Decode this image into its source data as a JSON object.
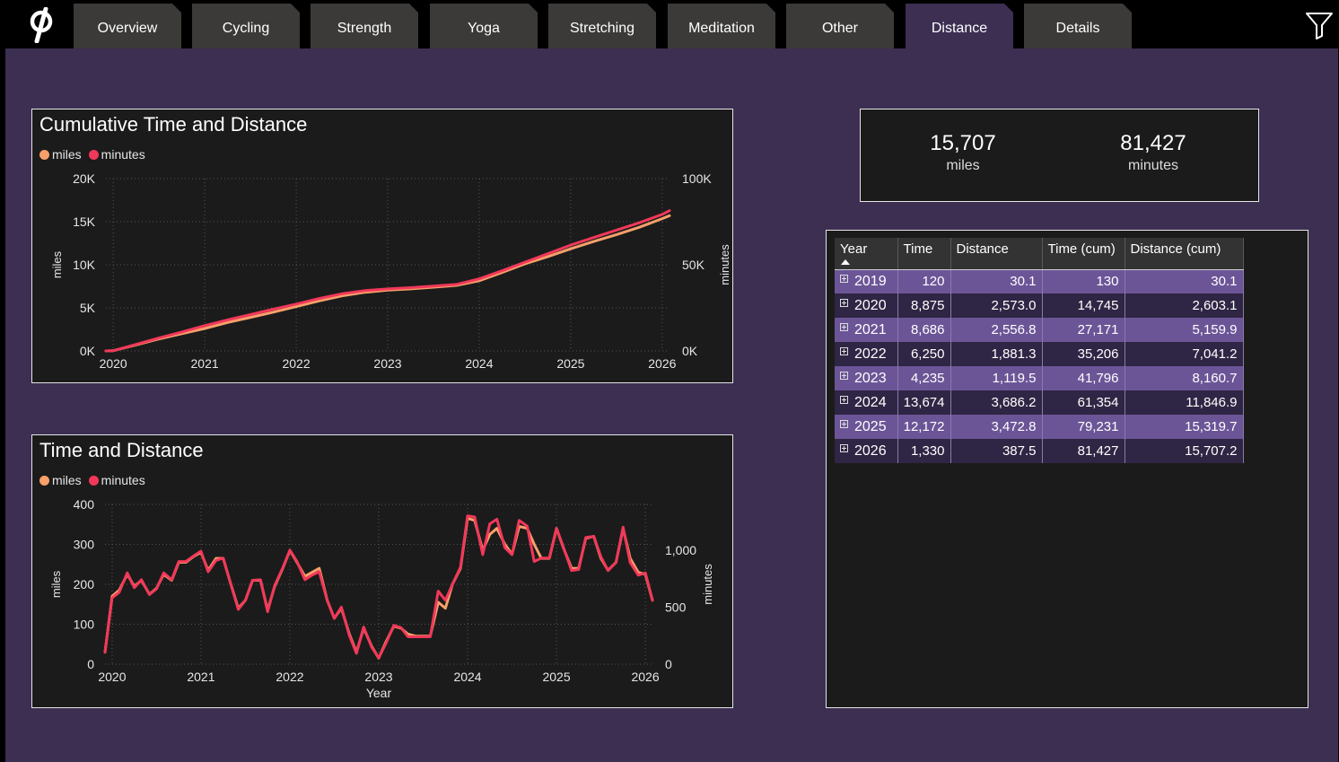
{
  "nav": {
    "tabs": [
      {
        "label": "Overview",
        "active": false
      },
      {
        "label": "Cycling",
        "active": false
      },
      {
        "label": "Strength",
        "active": false
      },
      {
        "label": "Yoga",
        "active": false
      },
      {
        "label": "Stretching",
        "active": false
      },
      {
        "label": "Meditation",
        "active": false
      },
      {
        "label": "Other",
        "active": false
      },
      {
        "label": "Distance",
        "active": true
      },
      {
        "label": "Details",
        "active": false
      }
    ],
    "logo_icon": "peloton-logo-icon",
    "filter_icon": "funnel-icon"
  },
  "colors": {
    "miles": "#f7a06a",
    "minutes": "#f2385a",
    "canvas": "#3c2f52",
    "panel": "#1b1b1b"
  },
  "kpi": {
    "miles_value": "15,707",
    "miles_label": "miles",
    "minutes_value": "81,427",
    "minutes_label": "minutes"
  },
  "table": {
    "headers": [
      "Year",
      "Time",
      "Distance",
      "Time (cum)",
      "Distance (cum)"
    ],
    "sort": "Year ascending",
    "rows": [
      [
        "2019",
        "120",
        "30.1",
        "130",
        "30.1"
      ],
      [
        "2020",
        "8,875",
        "2,573.0",
        "14,745",
        "2,603.1"
      ],
      [
        "2021",
        "8,686",
        "2,556.8",
        "27,171",
        "5,159.9"
      ],
      [
        "2022",
        "6,250",
        "1,881.3",
        "35,206",
        "7,041.2"
      ],
      [
        "2023",
        "4,235",
        "1,119.5",
        "41,796",
        "8,160.7"
      ],
      [
        "2024",
        "13,674",
        "3,686.2",
        "61,354",
        "11,846.9"
      ],
      [
        "2025",
        "12,172",
        "3,472.8",
        "79,231",
        "15,319.7"
      ],
      [
        "2026",
        "1,330",
        "387.5",
        "81,427",
        "15,707.2"
      ]
    ]
  },
  "chart_data": [
    {
      "type": "line",
      "title": "Cumulative Time and Distance",
      "legend": [
        "miles",
        "minutes"
      ],
      "legend_position": "top-left",
      "grid": true,
      "xlabel": "",
      "ylabel": "miles",
      "y2label": "minutes",
      "x_ticks": [
        "2020",
        "2021",
        "2022",
        "2023",
        "2024",
        "2025",
        "2026"
      ],
      "y_ticks": [
        "0K",
        "5K",
        "10K",
        "15K",
        "20K"
      ],
      "y2_ticks": [
        "0K",
        "50K",
        "100K"
      ],
      "xlim": [
        2019.92,
        2026.08
      ],
      "ylim": [
        0,
        20000
      ],
      "y2lim": [
        0,
        100000
      ],
      "series": [
        {
          "name": "miles",
          "axis": "left",
          "x": [
            2019.92,
            2020.0,
            2020.25,
            2020.5,
            2020.75,
            2021.0,
            2021.25,
            2021.5,
            2021.75,
            2022.0,
            2022.25,
            2022.5,
            2022.75,
            2023.0,
            2023.25,
            2023.5,
            2023.75,
            2024.0,
            2024.25,
            2024.5,
            2024.75,
            2025.0,
            2025.25,
            2025.5,
            2025.75,
            2026.0,
            2026.08
          ],
          "y": [
            0,
            30,
            700,
            1400,
            2000,
            2600,
            3300,
            3900,
            4500,
            5150,
            5800,
            6400,
            6800,
            7050,
            7200,
            7400,
            7600,
            8150,
            9100,
            10100,
            10950,
            11850,
            12700,
            13500,
            14350,
            15350,
            15700
          ]
        },
        {
          "name": "minutes",
          "axis": "right",
          "x": [
            2019.92,
            2020.0,
            2020.25,
            2020.5,
            2020.75,
            2021.0,
            2021.25,
            2021.5,
            2021.75,
            2022.0,
            2022.25,
            2022.5,
            2022.75,
            2023.0,
            2023.25,
            2023.5,
            2023.75,
            2024.0,
            2024.25,
            2024.5,
            2024.75,
            2025.0,
            2025.25,
            2025.5,
            2025.75,
            2026.0,
            2026.08
          ],
          "y": [
            0,
            130,
            3800,
            7500,
            11000,
            14700,
            18000,
            21100,
            24200,
            27200,
            30400,
            33200,
            35000,
            36000,
            36700,
            37600,
            38600,
            41800,
            46500,
            51500,
            56400,
            61400,
            65800,
            70100,
            74400,
            79200,
            81400
          ]
        }
      ]
    },
    {
      "type": "line",
      "title": "Time and Distance",
      "legend": [
        "miles",
        "minutes"
      ],
      "legend_position": "top-left",
      "grid": true,
      "xlabel": "Year",
      "ylabel": "miles",
      "y2label": "minutes",
      "x_ticks": [
        "2020",
        "2021",
        "2022",
        "2023",
        "2024",
        "2025",
        "2026"
      ],
      "y_ticks": [
        "0",
        "100",
        "200",
        "300",
        "400"
      ],
      "y2_ticks": [
        "0",
        "500",
        "1,000"
      ],
      "xlim": [
        2019.92,
        2026.08
      ],
      "ylim": [
        0,
        400
      ],
      "y2lim": [
        0,
        1400
      ],
      "series": [
        {
          "name": "miles",
          "axis": "left",
          "x": [
            2019.92,
            2020.0,
            2020.08,
            2020.17,
            2020.25,
            2020.33,
            2020.42,
            2020.5,
            2020.58,
            2020.67,
            2020.75,
            2020.83,
            2020.92,
            2021.0,
            2021.08,
            2021.17,
            2021.25,
            2021.33,
            2021.42,
            2021.5,
            2021.58,
            2021.67,
            2021.75,
            2021.83,
            2021.92,
            2022.0,
            2022.08,
            2022.17,
            2022.25,
            2022.33,
            2022.42,
            2022.5,
            2022.58,
            2022.67,
            2022.75,
            2022.83,
            2022.92,
            2023.0,
            2023.08,
            2023.17,
            2023.25,
            2023.33,
            2023.42,
            2023.5,
            2023.58,
            2023.67,
            2023.75,
            2023.83,
            2023.92,
            2024.0,
            2024.08,
            2024.17,
            2024.25,
            2024.33,
            2024.42,
            2024.5,
            2024.58,
            2024.67,
            2024.75,
            2024.83,
            2024.92,
            2025.0,
            2025.08,
            2025.17,
            2025.25,
            2025.33,
            2025.42,
            2025.5,
            2025.58,
            2025.67,
            2025.75,
            2025.83,
            2025.92,
            2026.0,
            2026.08
          ],
          "y": [
            30,
            170,
            185,
            225,
            195,
            210,
            175,
            190,
            225,
            210,
            255,
            255,
            270,
            280,
            235,
            265,
            265,
            205,
            140,
            160,
            210,
            210,
            135,
            195,
            240,
            285,
            255,
            220,
            230,
            240,
            160,
            115,
            140,
            75,
            30,
            90,
            45,
            15,
            55,
            95,
            90,
            75,
            70,
            70,
            70,
            155,
            140,
            200,
            240,
            365,
            360,
            285,
            325,
            340,
            300,
            275,
            345,
            340,
            300,
            265,
            265,
            340,
            290,
            240,
            240,
            315,
            320,
            265,
            235,
            255,
            340,
            265,
            230,
            225,
            160
          ]
        },
        {
          "name": "minutes",
          "axis": "right",
          "x": [
            2019.92,
            2020.0,
            2020.08,
            2020.17,
            2020.25,
            2020.33,
            2020.42,
            2020.5,
            2020.58,
            2020.67,
            2020.75,
            2020.83,
            2020.92,
            2021.0,
            2021.08,
            2021.17,
            2021.25,
            2021.33,
            2021.42,
            2021.5,
            2021.58,
            2021.67,
            2021.75,
            2021.83,
            2021.92,
            2022.0,
            2022.08,
            2022.17,
            2022.25,
            2022.33,
            2022.42,
            2022.5,
            2022.58,
            2022.67,
            2022.75,
            2022.83,
            2022.92,
            2023.0,
            2023.08,
            2023.17,
            2023.25,
            2023.33,
            2023.42,
            2023.5,
            2023.58,
            2023.67,
            2023.75,
            2023.83,
            2023.92,
            2024.0,
            2024.08,
            2024.17,
            2024.25,
            2024.33,
            2024.42,
            2024.5,
            2024.58,
            2024.67,
            2024.75,
            2024.83,
            2024.92,
            2025.0,
            2025.08,
            2025.17,
            2025.25,
            2025.33,
            2025.42,
            2025.5,
            2025.58,
            2025.67,
            2025.75,
            2025.83,
            2025.92,
            2026.0,
            2026.08
          ],
          "y": [
            105,
            580,
            630,
            800,
            670,
            740,
            610,
            660,
            800,
            740,
            900,
            900,
            950,
            990,
            810,
            910,
            930,
            715,
            480,
            560,
            735,
            740,
            460,
            690,
            845,
            1000,
            900,
            740,
            780,
            810,
            560,
            400,
            500,
            250,
            95,
            325,
            150,
            55,
            180,
            340,
            320,
            240,
            240,
            240,
            240,
            640,
            560,
            700,
            850,
            1300,
            1290,
            960,
            1230,
            1270,
            1020,
            960,
            1260,
            1210,
            900,
            930,
            930,
            1190,
            1020,
            820,
            830,
            1110,
            1120,
            940,
            820,
            890,
            1200,
            890,
            780,
            800,
            560
          ]
        }
      ]
    }
  ]
}
